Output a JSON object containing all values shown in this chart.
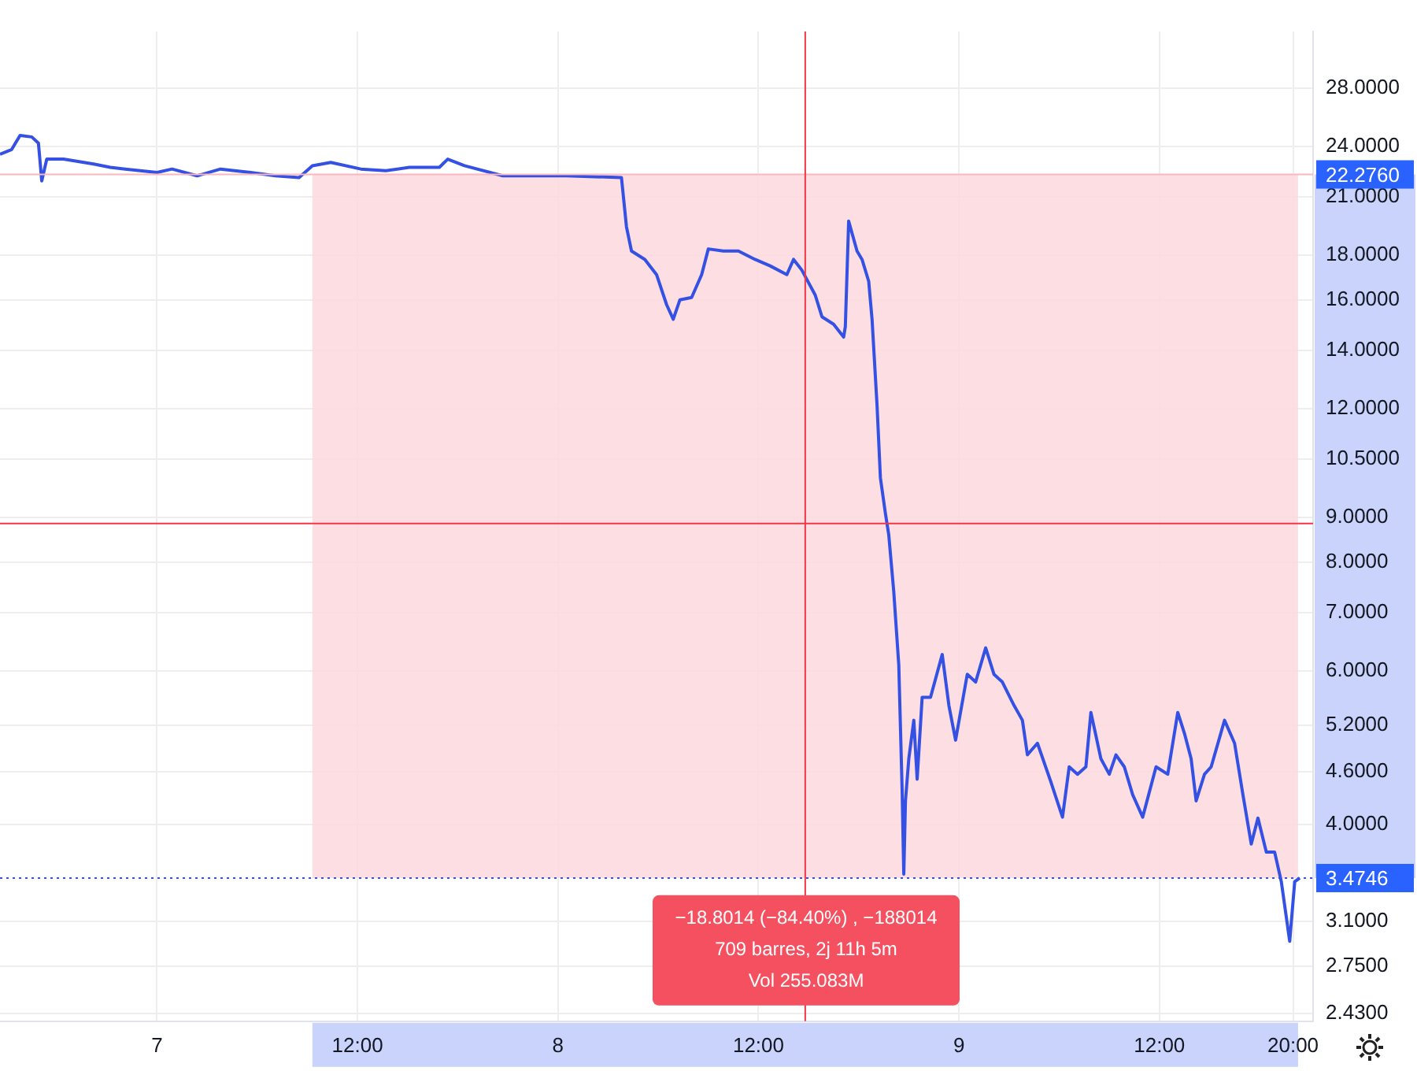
{
  "chart_data": {
    "type": "line",
    "x": [
      "--11-06T14:36",
      "--11-06T15:18",
      "--11-06T15:48",
      "--11-06T16:30",
      "--11-06T16:54",
      "--11-06T17:06",
      "--11-06T17:24",
      "--11-06T18:24",
      "--11-06T20:12",
      "--11-06T21:12",
      "--11-06T22:06",
      "--11-07T00:00",
      "--11-07T00:54",
      "--11-07T02:24",
      "--11-07T03:48",
      "--11-07T05:36",
      "--11-07T07:06",
      "--11-07T08:30",
      "--11-07T09:18",
      "--11-07T10:24",
      "--11-07T12:12",
      "--11-07T13:42",
      "--11-07T15:06",
      "--11-07T16:54",
      "--11-07T17:24",
      "--11-07T18:24",
      "--11-07T20:42",
      "--11-07T22:36",
      "--11-08T00:30",
      "--11-08T03:48",
      "--11-08T04:06",
      "--11-08T04:24",
      "--11-08T05:12",
      "--11-08T05:54",
      "--11-08T06:30",
      "--11-08T06:54",
      "--11-08T07:18",
      "--11-08T08:00",
      "--11-08T08:36",
      "--11-08T09:00",
      "--11-08T09:54",
      "--11-08T10:48",
      "--11-08T11:48",
      "--11-08T12:42",
      "--11-08T13:42",
      "--11-08T14:06",
      "--11-08T14:36",
      "--11-08T15:24",
      "--11-08T15:48",
      "--11-08T16:30",
      "--11-08T17:06",
      "--11-08T17:12",
      "--11-08T17:24",
      "--11-08T17:54",
      "--11-08T18:12",
      "--11-08T18:36",
      "--11-08T18:48",
      "--11-08T19:06",
      "--11-08T19:18",
      "--11-08T19:36",
      "--11-08T19:48",
      "--11-08T20:06",
      "--11-08T20:24",
      "--11-08T20:36",
      "--11-08T20:42",
      "--11-08T20:48",
      "--11-08T21:00",
      "--11-08T21:18",
      "--11-08T21:30",
      "--11-08T21:48",
      "--11-08T22:18",
      "--11-08T23:00",
      "--11-08T23:24",
      "--11-08T23:48",
      "--11-09T00:30",
      "--11-09T01:00",
      "--11-09T01:36",
      "--11-09T02:06",
      "--11-09T02:36",
      "--11-09T03:18",
      "--11-09T03:48",
      "--11-09T04:06",
      "--11-09T04:42",
      "--11-09T05:30",
      "--11-09T06:12",
      "--11-09T06:36",
      "--11-09T07:06",
      "--11-09T07:36",
      "--11-09T07:54",
      "--11-09T08:30",
      "--11-09T09:00",
      "--11-09T09:24",
      "--11-09T09:54",
      "--11-09T10:24",
      "--11-09T11:00",
      "--11-09T11:48",
      "--11-09T12:30",
      "--11-09T13:06",
      "--11-09T13:30",
      "--11-09T13:54",
      "--11-09T14:12",
      "--11-09T14:42",
      "--11-09T15:06",
      "--11-09T15:54",
      "--11-09T16:30",
      "--11-09T17:00",
      "--11-09T17:30",
      "--11-09T17:54",
      "--11-09T18:24",
      "--11-09T18:54",
      "--11-09T19:18",
      "--11-09T19:48",
      "--11-09T20:06",
      "--11-09T20:24"
    ],
    "series": [
      {
        "color": "#3451e4",
        "values": [
          23.5,
          23.8,
          24.7,
          24.6,
          24.2,
          21.9,
          23.2,
          23.2,
          22.9,
          22.7,
          22.6,
          22.4,
          22.6,
          22.2,
          22.6,
          22.4,
          22.2,
          22.1,
          22.8,
          23.0,
          22.6,
          22.5,
          22.7,
          22.7,
          23.2,
          22.8,
          22.2,
          22.2,
          22.2,
          22.1,
          19.4,
          18.2,
          17.8,
          17.1,
          15.8,
          15.2,
          16.0,
          16.1,
          17.1,
          18.3,
          18.2,
          18.2,
          17.8,
          17.5,
          17.1,
          17.8,
          17.3,
          16.2,
          15.3,
          15.0,
          14.5,
          14.9,
          19.7,
          18.2,
          17.8,
          16.8,
          15.2,
          12.1,
          10.0,
          9.1,
          8.6,
          7.4,
          6.1,
          4.39,
          3.51,
          4.26,
          4.76,
          5.27,
          4.51,
          5.6,
          5.6,
          6.27,
          5.48,
          5.0,
          5.95,
          5.83,
          6.38,
          5.95,
          5.83,
          5.48,
          5.27,
          4.81,
          4.96,
          4.48,
          4.08,
          4.66,
          4.57,
          4.66,
          5.38,
          4.76,
          4.57,
          4.81,
          4.66,
          4.33,
          4.08,
          4.66,
          4.57,
          5.38,
          5.09,
          4.76,
          4.26,
          4.57,
          4.66,
          5.27,
          4.96,
          4.33,
          3.8,
          4.07,
          3.72,
          3.72,
          3.44,
          2.94,
          3.44,
          3.4746
        ]
      }
    ],
    "xlim": [
      "--11-06T14:36",
      "--11-09T21:12"
    ],
    "xticks": [
      {
        "value": "--11-07",
        "label": "7"
      },
      {
        "value": "--11-07T12:00",
        "label": "12:00"
      },
      {
        "value": "--11-08",
        "label": "8"
      },
      {
        "value": "--11-08T12:00",
        "label": "12:00"
      },
      {
        "value": "--11-09",
        "label": "9"
      },
      {
        "value": "--11-09T12:00",
        "label": "12:00"
      },
      {
        "value": "--11-09T20:00",
        "label": "20:00"
      }
    ],
    "ylim": [
      2.38,
      32.5
    ],
    "yticks": [
      {
        "value": 2.43,
        "label": "2.4300"
      },
      {
        "value": 2.75,
        "label": "2.7500"
      },
      {
        "value": 3.1,
        "label": "3.1000"
      },
      {
        "value": 4,
        "label": "4.0000"
      },
      {
        "value": 4.6,
        "label": "4.6000"
      },
      {
        "value": 5.2,
        "label": "5.2000"
      },
      {
        "value": 6,
        "label": "6.0000"
      },
      {
        "value": 7,
        "label": "7.0000"
      },
      {
        "value": 8,
        "label": "8.0000"
      },
      {
        "value": 9,
        "label": "9.0000"
      },
      {
        "value": 10.5,
        "label": "10.5000"
      },
      {
        "value": 12,
        "label": "12.0000"
      },
      {
        "value": 14,
        "label": "14.0000"
      },
      {
        "value": 16,
        "label": "16.0000"
      },
      {
        "value": 18,
        "label": "18.0000"
      },
      {
        "value": 21,
        "label": "21.0000"
      },
      {
        "value": 24,
        "label": "24.0000"
      },
      {
        "value": 28,
        "label": "28.0000"
      }
    ],
    "log": true,
    "grid": true,
    "legend": false,
    "marker": "none",
    "line_style": "solid",
    "bands": [
      {
        "axis": "x",
        "from": "--11-07T09:18",
        "to": "--11-09T20:18",
        "color": "#fdd9de"
      }
    ],
    "ref_lines": [
      {
        "axis": "y",
        "value": 22.276,
        "label": "22.2760",
        "color": "#fbb6be",
        "line_style": "solid"
      },
      {
        "axis": "y",
        "value": 3.4746,
        "label": "3.4746",
        "color": "#3451e4",
        "line_style": "dotted"
      },
      {
        "axis": "y",
        "value": 8.86,
        "color": "#f23645",
        "line_style": "solid"
      },
      {
        "axis": "x",
        "value": "--11-08T14:48",
        "color": "#f23645",
        "line_style": "solid"
      }
    ],
    "annotations": [
      "−18.8014 (−84.40%) , −188014",
      "709 barres, 2j 11h 5m",
      "Vol 255.083M"
    ]
  }
}
